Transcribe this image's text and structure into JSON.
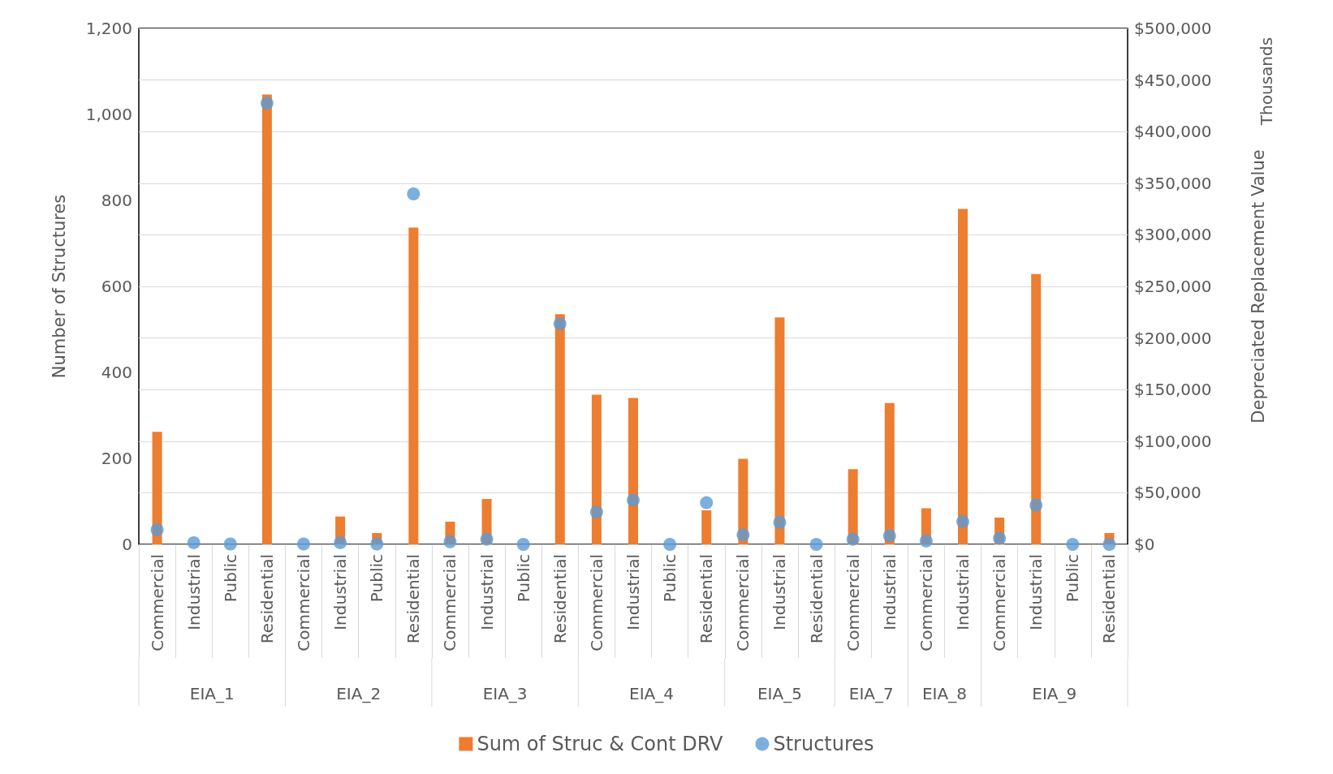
{
  "chart_data": {
    "type": "bar",
    "categories": [
      "Commercial",
      "Industrial",
      "Public",
      "Residential",
      "Commercial",
      "Industrial",
      "Public",
      "Residential",
      "Commercial",
      "Industrial",
      "Public",
      "Residential",
      "Commercial",
      "Industrial",
      "Public",
      "Residential",
      "Commercial",
      "Industrial",
      "Residential",
      "Commercial",
      "Industrial",
      "Commercial",
      "Industrial",
      "Commercial",
      "Industrial",
      "Public",
      "Residential"
    ],
    "series": [
      {
        "name": "Sum of Struc & Cont DRV",
        "type": "bar",
        "axis": "y2",
        "color": "#ed7d31",
        "values": [
          109000,
          0,
          0,
          436000,
          0,
          27000,
          11000,
          307000,
          22000,
          44000,
          0,
          223000,
          145000,
          142000,
          0,
          33000,
          83000,
          220000,
          0,
          73000,
          137000,
          35000,
          325000,
          26000,
          262000,
          0,
          11000
        ]
      },
      {
        "name": "Structures",
        "type": "scatter",
        "axis": "y",
        "color": "#5b9bd5",
        "values": [
          34,
          4,
          1,
          1026,
          1,
          4,
          1,
          815,
          6,
          12,
          0,
          513,
          75,
          103,
          0,
          97,
          22,
          51,
          0,
          12,
          20,
          8,
          53,
          14,
          91,
          0,
          0
        ]
      }
    ],
    "ylabel": "Number of Structures",
    "y2label": "Depreciated Replacement Value",
    "annotations": [
      "EIA_1",
      "EIA_2",
      "EIA_3",
      "EIA_4",
      "EIA_5",
      "EIA_7",
      "EIA_8",
      "EIA_9",
      "Thousands"
    ],
    "ylim": [
      0,
      1200
    ],
    "yticks": [
      0,
      200,
      400,
      600,
      800,
      {
        "value": 1000,
        "label": "1,000"
      },
      {
        "value": 1200,
        "label": "1,200"
      }
    ],
    "y2lim": [
      0,
      500000
    ],
    "y2ticks": [
      {
        "value": 0,
        "label": "$0"
      },
      {
        "value": 50000,
        "label": "$50,000"
      },
      {
        "value": 100000,
        "label": "$100,000"
      },
      {
        "value": 150000,
        "label": "$150,000"
      },
      {
        "value": 200000,
        "label": "$200,000"
      },
      {
        "value": 250000,
        "label": "$250,000"
      },
      {
        "value": 300000,
        "label": "$300,000"
      },
      {
        "value": 350000,
        "label": "$350,000"
      },
      {
        "value": 400000,
        "label": "$400,000"
      },
      {
        "value": 450000,
        "label": "$450,000"
      },
      {
        "value": 500000,
        "label": "$500,000"
      }
    ],
    "grid": "y2",
    "legend": "bottom",
    "marker": "circle"
  }
}
